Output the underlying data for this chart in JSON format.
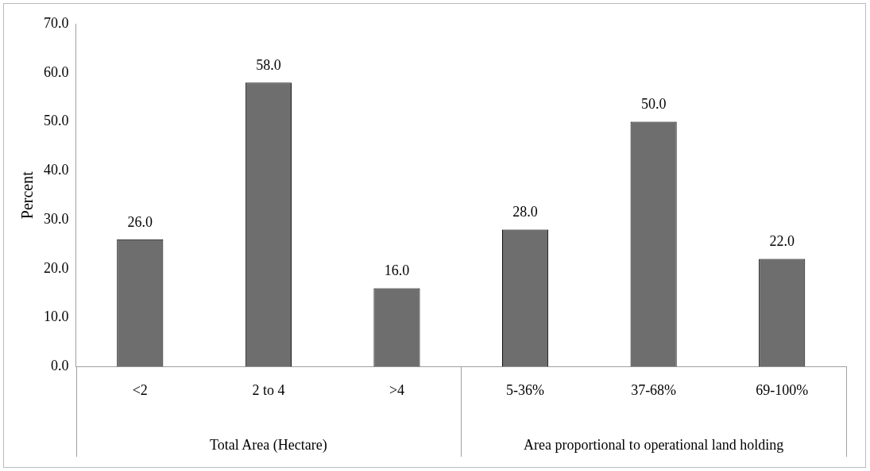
{
  "chart_data": {
    "type": "bar",
    "ylabel": "Percent",
    "categories": [
      "<2",
      "2 to 4",
      ">4",
      "5-36%",
      "37-68%",
      "69-100%"
    ],
    "values": [
      26.0,
      58.0,
      16.0,
      28.0,
      50.0,
      22.0
    ],
    "value_labels": [
      "26.0",
      "58.0",
      "16.0",
      "28.0",
      "50.0",
      "22.0"
    ],
    "color": "#6e6e6e",
    "ylim": [
      0,
      70
    ],
    "yticks": [
      {
        "value": 0,
        "label": "0.0"
      },
      {
        "value": 10,
        "label": "10.0"
      },
      {
        "value": 20,
        "label": "20.0"
      },
      {
        "value": 30,
        "label": "30.0"
      },
      {
        "value": 40,
        "label": "40.0"
      },
      {
        "value": 50,
        "label": "50.0"
      },
      {
        "value": 60,
        "label": "60.0"
      },
      {
        "value": 70,
        "label": "70.0"
      }
    ],
    "annotations": [
      "Total Area (Hectare)",
      "Area proportional to operational land holding"
    ],
    "grid": false,
    "legend": false
  }
}
